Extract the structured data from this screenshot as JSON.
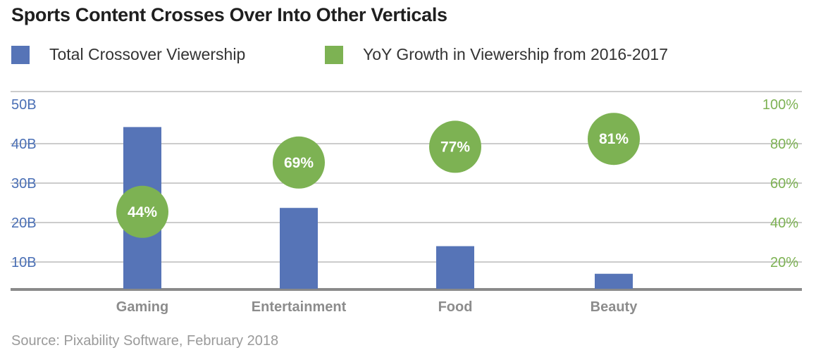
{
  "chart_data": {
    "type": "bar",
    "title": "Sports Content Crosses Over Into Other Verticals",
    "categories": [
      "Gaming",
      "Entertainment",
      "Food",
      "Beauty"
    ],
    "series": [
      {
        "name": "Total Crossover Viewership",
        "axis": "left",
        "mark": "bar",
        "color": "#5674b7",
        "values": [
          41,
          20.5,
          10.8,
          3.8
        ]
      },
      {
        "name": "YoY Growth in Viewership from 2016-2017",
        "axis": "right",
        "mark": "circle",
        "color": "#7db253",
        "values": [
          44,
          69,
          77,
          81
        ],
        "labels": [
          "44%",
          "69%",
          "77%",
          "81%"
        ]
      }
    ],
    "y_left": {
      "range": [
        0,
        50
      ],
      "ticks": [
        10,
        20,
        30,
        40,
        50
      ],
      "tick_labels": [
        "10B",
        "20B",
        "30B",
        "40B",
        "50B"
      ],
      "color": "#4a6fb5"
    },
    "y_right": {
      "range": [
        0,
        100
      ],
      "ticks": [
        20,
        40,
        60,
        80,
        100
      ],
      "tick_labels": [
        "20%",
        "40%",
        "60%",
        "80%",
        "100%"
      ],
      "color": "#7db253"
    },
    "grid": true,
    "legend_position": "top-left",
    "source": "Source: Pixability Software, February 2018"
  }
}
